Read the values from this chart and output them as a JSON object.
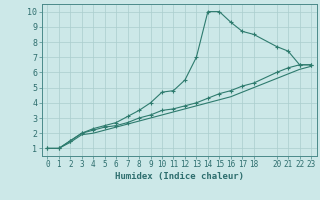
{
  "xlabel": "Humidex (Indice chaleur)",
  "background_color": "#cce8e8",
  "grid_color": "#aacece",
  "line_color": "#2e7b6e",
  "xlim": [
    -0.5,
    23.5
  ],
  "ylim": [
    0.5,
    10.5
  ],
  "yticks": [
    1,
    2,
    3,
    4,
    5,
    6,
    7,
    8,
    9,
    10
  ],
  "xticks": [
    0,
    1,
    2,
    3,
    4,
    5,
    6,
    7,
    8,
    9,
    10,
    11,
    12,
    13,
    14,
    15,
    16,
    17,
    18,
    20,
    21,
    22,
    23
  ],
  "series1_x": [
    0,
    1,
    2,
    3,
    4,
    5,
    6,
    7,
    8,
    9,
    10,
    11,
    12,
    13,
    14,
    15,
    16,
    17,
    18,
    20,
    21,
    22,
    23
  ],
  "series1_y": [
    1,
    1,
    1.5,
    2.0,
    2.3,
    2.5,
    2.7,
    3.1,
    3.5,
    4.0,
    4.7,
    4.8,
    5.5,
    7.0,
    10,
    10,
    9.3,
    8.7,
    8.5,
    7.7,
    7.4,
    6.5,
    6.5
  ],
  "series2_x": [
    0,
    1,
    2,
    3,
    4,
    5,
    6,
    7,
    8,
    9,
    10,
    11,
    12,
    13,
    14,
    15,
    16,
    17,
    18,
    20,
    21,
    22,
    23
  ],
  "series2_y": [
    1,
    1,
    1.5,
    2.0,
    2.2,
    2.4,
    2.5,
    2.7,
    3.0,
    3.2,
    3.5,
    3.6,
    3.8,
    4.0,
    4.3,
    4.6,
    4.8,
    5.1,
    5.3,
    6.0,
    6.3,
    6.5,
    6.5
  ],
  "series3_x": [
    0,
    1,
    2,
    3,
    4,
    5,
    6,
    7,
    8,
    9,
    10,
    11,
    12,
    13,
    14,
    15,
    16,
    17,
    18,
    20,
    21,
    22,
    23
  ],
  "series3_y": [
    1,
    1,
    1.4,
    1.9,
    2.0,
    2.2,
    2.4,
    2.6,
    2.8,
    3.0,
    3.2,
    3.4,
    3.6,
    3.8,
    4.0,
    4.2,
    4.4,
    4.7,
    5.0,
    5.6,
    5.9,
    6.2,
    6.4
  ],
  "tick_fontsize": 5.5,
  "xlabel_fontsize": 6.5
}
